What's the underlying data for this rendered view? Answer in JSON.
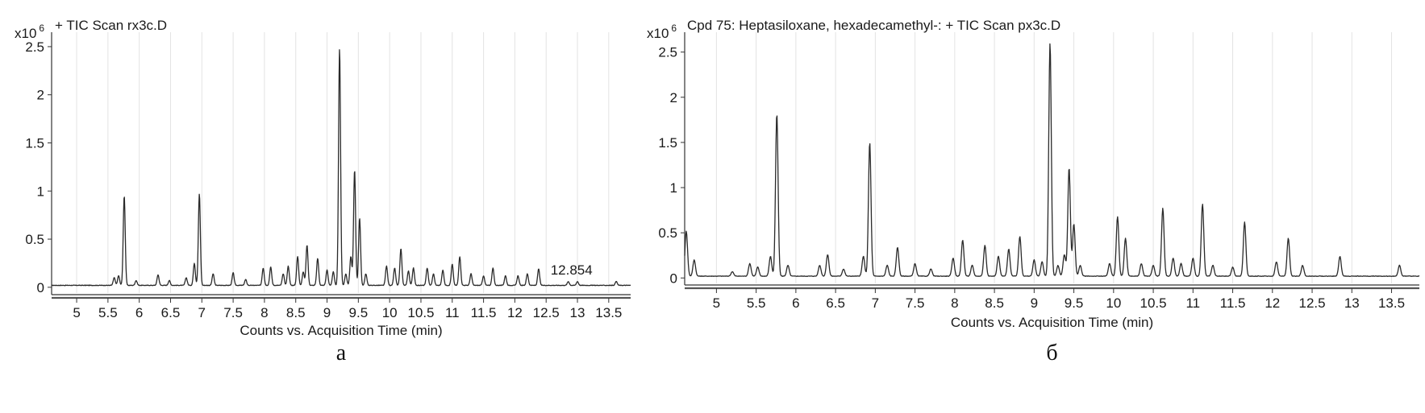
{
  "chart_data": [
    {
      "type": "line",
      "panel_label": "а",
      "title": "+ TIC Scan rx3c.D",
      "multiplier": {
        "base": "x10",
        "exponent": "6"
      },
      "xlabel": "Counts vs. Acquisition Time (min)",
      "ylabel": "",
      "xlim": [
        4.6,
        13.85
      ],
      "ylim": [
        -0.06,
        2.65
      ],
      "xticks": [
        "5",
        "5.5",
        "6",
        "6.5",
        "7",
        "7.5",
        "8",
        "8.5",
        "9",
        "9.5",
        "10",
        "10.5",
        "11",
        "11.5",
        "12",
        "12.5",
        "13",
        "13.5"
      ],
      "yticks": [
        "0",
        "0.5",
        "1",
        "1.5",
        "2",
        "2.5"
      ],
      "grid": true,
      "annotations": [
        {
          "text": "12.854",
          "x": 12.854,
          "y": 0.1
        }
      ],
      "baseline": 0.02,
      "peaks": [
        [
          5.6,
          0.08
        ],
        [
          5.67,
          0.1
        ],
        [
          5.76,
          0.93
        ],
        [
          5.95,
          0.05
        ],
        [
          6.3,
          0.11
        ],
        [
          6.48,
          0.05
        ],
        [
          6.75,
          0.08
        ],
        [
          6.88,
          0.23
        ],
        [
          6.96,
          0.95
        ],
        [
          7.18,
          0.12
        ],
        [
          7.5,
          0.13
        ],
        [
          7.7,
          0.06
        ],
        [
          7.98,
          0.18
        ],
        [
          8.1,
          0.19
        ],
        [
          8.3,
          0.12
        ],
        [
          8.38,
          0.2
        ],
        [
          8.53,
          0.3
        ],
        [
          8.62,
          0.14
        ],
        [
          8.68,
          0.42
        ],
        [
          8.85,
          0.28
        ],
        [
          9.0,
          0.16
        ],
        [
          9.1,
          0.14
        ],
        [
          9.2,
          2.46
        ],
        [
          9.3,
          0.12
        ],
        [
          9.38,
          0.3
        ],
        [
          9.44,
          1.2
        ],
        [
          9.52,
          0.7
        ],
        [
          9.62,
          0.12
        ],
        [
          9.95,
          0.2
        ],
        [
          10.08,
          0.18
        ],
        [
          10.18,
          0.38
        ],
        [
          10.3,
          0.15
        ],
        [
          10.38,
          0.18
        ],
        [
          10.6,
          0.18
        ],
        [
          10.7,
          0.12
        ],
        [
          10.85,
          0.16
        ],
        [
          11.0,
          0.22
        ],
        [
          11.12,
          0.3
        ],
        [
          11.3,
          0.12
        ],
        [
          11.5,
          0.1
        ],
        [
          11.65,
          0.18
        ],
        [
          11.85,
          0.1
        ],
        [
          12.05,
          0.1
        ],
        [
          12.2,
          0.12
        ],
        [
          12.38,
          0.17
        ],
        [
          12.854,
          0.04
        ],
        [
          13.0,
          0.04
        ],
        [
          13.62,
          0.04
        ]
      ]
    },
    {
      "type": "line",
      "panel_label": "б",
      "title": "Cpd 75: Heptasiloxane, hexadecamethyl-: + TIC Scan px3c.D",
      "multiplier": {
        "base": "x10",
        "exponent": "6"
      },
      "xlabel": "Counts vs. Acquisition Time (min)",
      "ylabel": "",
      "xlim": [
        4.6,
        13.85
      ],
      "ylim": [
        -0.06,
        2.72
      ],
      "xticks": [
        "5",
        "5.5",
        "6",
        "6.5",
        "7",
        "7.5",
        "8",
        "8.5",
        "9",
        "9.5",
        "10",
        "10.5",
        "11",
        "11.5",
        "12",
        "12.5",
        "13",
        "13.5"
      ],
      "yticks": [
        "0",
        "0.5",
        "1",
        "1.5",
        "2",
        "2.5"
      ],
      "grid": true,
      "annotations": [],
      "baseline": 0.02,
      "peaks": [
        [
          4.62,
          0.5
        ],
        [
          4.72,
          0.18
        ],
        [
          5.2,
          0.05
        ],
        [
          5.42,
          0.14
        ],
        [
          5.52,
          0.1
        ],
        [
          5.68,
          0.22
        ],
        [
          5.76,
          1.8
        ],
        [
          5.9,
          0.12
        ],
        [
          6.3,
          0.12
        ],
        [
          6.4,
          0.24
        ],
        [
          6.6,
          0.08
        ],
        [
          6.85,
          0.22
        ],
        [
          6.93,
          1.48
        ],
        [
          7.15,
          0.12
        ],
        [
          7.28,
          0.32
        ],
        [
          7.5,
          0.14
        ],
        [
          7.7,
          0.08
        ],
        [
          7.98,
          0.2
        ],
        [
          8.1,
          0.4
        ],
        [
          8.22,
          0.12
        ],
        [
          8.38,
          0.34
        ],
        [
          8.55,
          0.22
        ],
        [
          8.68,
          0.3
        ],
        [
          8.82,
          0.44
        ],
        [
          9.0,
          0.18
        ],
        [
          9.1,
          0.16
        ],
        [
          9.2,
          2.58
        ],
        [
          9.3,
          0.12
        ],
        [
          9.38,
          0.24
        ],
        [
          9.44,
          1.2
        ],
        [
          9.5,
          0.58
        ],
        [
          9.58,
          0.12
        ],
        [
          9.95,
          0.14
        ],
        [
          10.05,
          0.66
        ],
        [
          10.15,
          0.42
        ],
        [
          10.35,
          0.14
        ],
        [
          10.5,
          0.12
        ],
        [
          10.62,
          0.75
        ],
        [
          10.75,
          0.2
        ],
        [
          10.85,
          0.14
        ],
        [
          11.0,
          0.2
        ],
        [
          11.12,
          0.8
        ],
        [
          11.25,
          0.12
        ],
        [
          11.5,
          0.1
        ],
        [
          11.65,
          0.6
        ],
        [
          12.05,
          0.16
        ],
        [
          12.2,
          0.42
        ],
        [
          12.38,
          0.12
        ],
        [
          12.85,
          0.22
        ],
        [
          13.6,
          0.12
        ]
      ]
    }
  ]
}
